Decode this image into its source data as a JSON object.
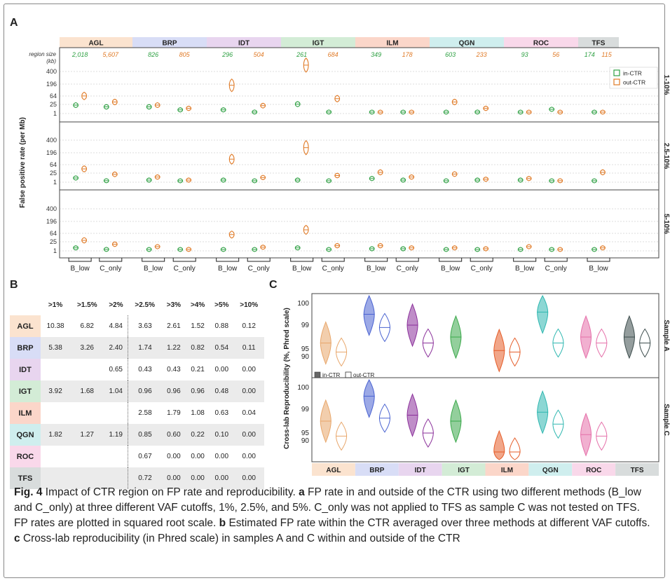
{
  "panels": {
    "a": "A",
    "b": "B",
    "c": "C"
  },
  "labs": [
    {
      "name": "AGL",
      "color": "#fbe3cf"
    },
    {
      "name": "BRP",
      "color": "#d8ddf6"
    },
    {
      "name": "IDT",
      "color": "#e8d5ef"
    },
    {
      "name": "IGT",
      "color": "#d3ecd6"
    },
    {
      "name": "ILM",
      "color": "#fbd6c9"
    },
    {
      "name": "QGN",
      "color": "#cfeeee"
    },
    {
      "name": "ROC",
      "color": "#f9d8ea"
    },
    {
      "name": "TFS",
      "color": "#d8dcdc"
    }
  ],
  "colors": {
    "in_ctr": "#2ea043",
    "out_ctr": "#e07a26"
  },
  "panelA": {
    "region_size_label": "region size",
    "region_size_unit": "(kb)",
    "region_sizes": [
      {
        "in": "2,018",
        "out": "5,607"
      },
      {
        "in": "826",
        "out": "805"
      },
      {
        "in": "296",
        "out": "504"
      },
      {
        "in": "261",
        "out": "684"
      },
      {
        "in": "349",
        "out": "178"
      },
      {
        "in": "603",
        "out": "233"
      },
      {
        "in": "93",
        "out": "56"
      },
      {
        "in": "174",
        "out": "115"
      }
    ],
    "ylabel": "False positive rate (per Mb)",
    "yticks": [
      400,
      196,
      64,
      25,
      1
    ],
    "facets": [
      "1-10%",
      "2.5-10%",
      "5-10%"
    ],
    "legend": {
      "in": "in-CTR",
      "out": "out-CTR"
    },
    "method_labels": [
      "B_low",
      "C_only"
    ],
    "tfs_method_labels": [
      "B_low"
    ]
  },
  "chart_data": [
    {
      "type": "violin",
      "title": "",
      "ylabel": "False positive rate (per Mb)",
      "y_scale": "sqrt",
      "ylim": [
        0,
        500
      ],
      "facets": [
        "1-10%",
        "2.5-10%",
        "5-10%"
      ],
      "labs": [
        "AGL",
        "BRP",
        "IDT",
        "IGT",
        "ILM",
        "QGN",
        "ROC",
        "TFS"
      ],
      "methods": [
        "B_low",
        "C_only"
      ],
      "series": [
        {
          "facet": "1-10%",
          "name": "in-CTR",
          "B_low": [
            16,
            10,
            3,
            20,
            0,
            0,
            0,
            0
          ],
          "C_only": [
            10,
            3,
            0.5,
            0.5,
            0,
            0.5,
            4,
            null
          ]
        },
        {
          "facet": "1-10%",
          "name": "out-CTR",
          "B_low": [
            70,
            16,
            180,
            530,
            0,
            30,
            0,
            0
          ],
          "C_only": [
            30,
            6,
            14,
            50,
            0,
            6,
            0,
            null
          ]
        },
        {
          "facet": "2.5-10%",
          "name": "in-CTR",
          "B_low": [
            4,
            1,
            1,
            1,
            3,
            0.2,
            1,
            0.2
          ],
          "C_only": [
            0.5,
            0.2,
            0.2,
            0.1,
            1,
            1,
            0.1,
            null
          ]
        },
        {
          "facet": "2.5-10%",
          "name": "out-CTR",
          "B_low": [
            40,
            6,
            120,
            270,
            22,
            15,
            3,
            22
          ],
          "C_only": [
            14,
            1,
            5,
            10,
            6,
            2,
            0.5,
            null
          ]
        },
        {
          "facet": "5-10%",
          "name": "in-CTR",
          "B_low": [
            2,
            0.3,
            0.2,
            2,
            1,
            0.2,
            0.1,
            0.1
          ],
          "C_only": [
            0.5,
            0.2,
            0.1,
            0.1,
            1,
            0.3,
            0.1,
            null
          ]
        },
        {
          "facet": "5-10%",
          "name": "out-CTR",
          "B_low": [
            25,
            4,
            60,
            100,
            6,
            2,
            4,
            2
          ],
          "C_only": [
            10,
            0.5,
            3,
            6,
            2,
            1,
            0.1,
            null
          ]
        }
      ]
    },
    {
      "type": "table",
      "title": "",
      "columns": [
        ">1%",
        ">1.5%",
        ">2%",
        ">2.5%",
        ">3%",
        ">4%",
        ">5%",
        ">10%"
      ],
      "rows": [
        {
          "lab": "AGL",
          "values": [
            "10.38",
            "6.82",
            "4.84",
            "3.63",
            "2.61",
            "1.52",
            "0.88",
            "0.12"
          ]
        },
        {
          "lab": "BRP",
          "values": [
            "5.38",
            "3.26",
            "2.40",
            "1.74",
            "1.22",
            "0.82",
            "0.54",
            "0.11"
          ]
        },
        {
          "lab": "IDT",
          "values": [
            "",
            "",
            "0.65",
            "0.43",
            "0.43",
            "0.21",
            "0.00",
            "0.00"
          ]
        },
        {
          "lab": "IGT",
          "values": [
            "3.92",
            "1.68",
            "1.04",
            "0.96",
            "0.96",
            "0.96",
            "0.48",
            "0.00"
          ]
        },
        {
          "lab": "ILM",
          "values": [
            "",
            "",
            "",
            "2.58",
            "1.79",
            "1.08",
            "0.63",
            "0.04"
          ]
        },
        {
          "lab": "QGN",
          "values": [
            "1.82",
            "1.27",
            "1.19",
            "0.85",
            "0.60",
            "0.22",
            "0.10",
            "0.00"
          ]
        },
        {
          "lab": "ROC",
          "values": [
            "",
            "",
            "",
            "0.67",
            "0.00",
            "0.00",
            "0.00",
            "0.00"
          ]
        },
        {
          "lab": "TFS",
          "values": [
            "",
            "",
            "",
            "0.72",
            "0.00",
            "0.00",
            "0.00",
            "0.00"
          ]
        }
      ]
    },
    {
      "type": "violin",
      "title": "",
      "ylabel": "Cross-lab Reproducibility (%, Phred scale)",
      "yticks": [
        100,
        99,
        95,
        90
      ],
      "facets": [
        "Sample A",
        "Sample C"
      ],
      "legend": [
        "in-CTR",
        "out-CTR"
      ],
      "labs": [
        "AGL",
        "BRP",
        "IDT",
        "IGT",
        "ILM",
        "QGN",
        "ROC",
        "TFS"
      ],
      "series": [
        {
          "facet": "Sample A",
          "name": "in-CTR",
          "median": [
            96,
            99.5,
            99,
            97,
            94,
            99.6,
            97,
            97
          ]
        },
        {
          "facet": "Sample A",
          "name": "out-CTR",
          "median": [
            93,
            98.6,
            96,
            null,
            93,
            96,
            96,
            96
          ]
        },
        {
          "facet": "Sample C",
          "name": "in-CTR",
          "median": [
            97,
            99.6,
            98,
            97,
            88,
            98.5,
            94,
            null
          ]
        },
        {
          "facet": "Sample C",
          "name": "out-CTR",
          "median": [
            93,
            97.5,
            95,
            null,
            88,
            96.5,
            93,
            null
          ]
        }
      ]
    }
  ],
  "panelC": {
    "ylabel": "Cross-lab Reproducibility (%, Phred scale)",
    "yticks": [
      "100",
      "99",
      "95",
      "90"
    ],
    "facets": [
      "Sample A",
      "Sample C"
    ],
    "legend": {
      "in": "in-CTR",
      "out": "out-CTR"
    }
  },
  "caption": {
    "fig": "Fig. 4",
    "title": "Impact of CTR region on FP rate and reproducibility.",
    "a_letter": "a",
    "a_text": "FP rate in and outside of the CTR using two different methods (B_low and C_only) at three different VAF cutoffs, 1%, 2.5%, and 5%. C_only was not applied to TFS as sample C was not tested on TFS. FP rates are plotted in squared root scale.",
    "b_letter": "b",
    "b_text": "Estimated FP rate within the CTR averaged over three methods at different VAF cutoffs.",
    "c_letter": "c",
    "c_text": "Cross-lab reproducibility (in Phred scale) in samples A and C within and outside of the CTR"
  }
}
